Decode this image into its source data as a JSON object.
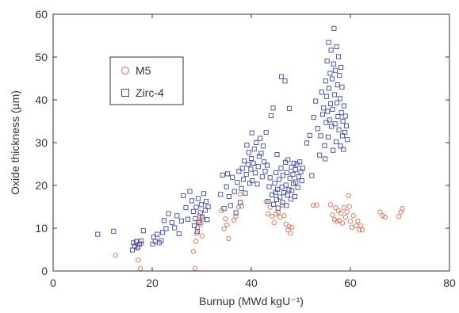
{
  "chart_data": {
    "type": "scatter",
    "title": "",
    "xlabel": "Burnup (MWd kgU⁻¹)",
    "ylabel": "Oxide thickness (µm)",
    "xlim": [
      0,
      80
    ],
    "ylim": [
      0,
      60
    ],
    "xticks": [
      0,
      20,
      40,
      60,
      80
    ],
    "yticks": [
      0,
      10,
      20,
      30,
      40,
      50,
      60
    ],
    "grid": false,
    "legend_position": "top-left",
    "series": [
      {
        "name": "M5",
        "marker": "circle",
        "color": "#e07050",
        "points": [
          [
            12.6,
            3.7
          ],
          [
            16.9,
            5.2
          ],
          [
            17.2,
            2.6
          ],
          [
            17.6,
            0.6
          ],
          [
            17.8,
            6.4
          ],
          [
            28.3,
            4.6
          ],
          [
            28.6,
            0.6
          ],
          [
            28.8,
            6.9
          ],
          [
            29.0,
            8.8
          ],
          [
            29.1,
            10.1
          ],
          [
            29.3,
            11.6
          ],
          [
            29.5,
            12.9
          ],
          [
            29.8,
            10.9
          ],
          [
            30.1,
            8.2
          ],
          [
            30.3,
            12.1
          ],
          [
            34.0,
            14.1
          ],
          [
            34.5,
            9.9
          ],
          [
            34.8,
            12.2
          ],
          [
            35.1,
            10.8
          ],
          [
            35.4,
            7.6
          ],
          [
            36.5,
            11.9
          ],
          [
            36.9,
            12.8
          ],
          [
            37.4,
            14.9
          ],
          [
            37.8,
            17.9
          ],
          [
            38.1,
            15.2
          ],
          [
            43.0,
            16.2
          ],
          [
            43.4,
            13.4
          ],
          [
            43.8,
            14.9
          ],
          [
            44.2,
            12.8
          ],
          [
            44.6,
            11.3
          ],
          [
            45.0,
            13.3
          ],
          [
            45.4,
            13.7
          ],
          [
            45.8,
            12.6
          ],
          [
            46.2,
            15.4
          ],
          [
            46.6,
            12.9
          ],
          [
            47.0,
            11.0
          ],
          [
            47.4,
            9.6
          ],
          [
            47.6,
            10.4
          ],
          [
            47.9,
            8.8
          ],
          [
            48.2,
            10.2
          ],
          [
            52.5,
            15.4
          ],
          [
            53.2,
            15.4
          ],
          [
            56.0,
            15.5
          ],
          [
            56.4,
            13.1
          ],
          [
            56.8,
            12.0
          ],
          [
            57.0,
            14.8
          ],
          [
            57.3,
            11.6
          ],
          [
            57.6,
            14.1
          ],
          [
            57.8,
            11.8
          ],
          [
            58.1,
            13.5
          ],
          [
            58.4,
            11.2
          ],
          [
            58.7,
            14.8
          ],
          [
            59.0,
            12.6
          ],
          [
            59.3,
            13.8
          ],
          [
            59.6,
            17.6
          ],
          [
            59.8,
            15.1
          ],
          [
            60.0,
            11.6
          ],
          [
            60.3,
            10.2
          ],
          [
            60.6,
            12.9
          ],
          [
            61.2,
            10.6
          ],
          [
            61.5,
            11.7
          ],
          [
            61.8,
            9.6
          ],
          [
            62.1,
            10.6
          ],
          [
            62.4,
            9.6
          ],
          [
            66.0,
            13.8
          ],
          [
            66.5,
            12.9
          ],
          [
            67.0,
            12.6
          ],
          [
            69.8,
            12.7
          ],
          [
            70.2,
            13.8
          ],
          [
            70.5,
            14.6
          ]
        ]
      },
      {
        "name": "Zirc-4",
        "marker": "square",
        "color": "#3c46a8",
        "points": [
          [
            9.0,
            8.6
          ],
          [
            12.2,
            9.3
          ],
          [
            16.0,
            4.9
          ],
          [
            16.2,
            6.6
          ],
          [
            16.5,
            5.8
          ],
          [
            16.8,
            6.9
          ],
          [
            17.1,
            5.6
          ],
          [
            17.4,
            6.3
          ],
          [
            17.8,
            7.0
          ],
          [
            18.2,
            9.4
          ],
          [
            20.1,
            6.3
          ],
          [
            20.3,
            7.9
          ],
          [
            20.6,
            6.9
          ],
          [
            21.0,
            8.6
          ],
          [
            21.4,
            6.6
          ],
          [
            21.8,
            7.1
          ],
          [
            22.1,
            9.0
          ],
          [
            22.4,
            11.8
          ],
          [
            22.8,
            9.9
          ],
          [
            23.3,
            13.4
          ],
          [
            24.0,
            11.3
          ],
          [
            24.5,
            10.1
          ],
          [
            25.0,
            12.9
          ],
          [
            25.4,
            8.7
          ],
          [
            25.9,
            11.7
          ],
          [
            26.3,
            17.6
          ],
          [
            26.8,
            14.8
          ],
          [
            27.2,
            12.1
          ],
          [
            27.6,
            18.6
          ],
          [
            28.0,
            16.4
          ],
          [
            28.3,
            13.9
          ],
          [
            28.5,
            10.6
          ],
          [
            28.7,
            12.2
          ],
          [
            28.9,
            14.9
          ],
          [
            29.1,
            9.3
          ],
          [
            29.3,
            16.9
          ],
          [
            29.5,
            11.3
          ],
          [
            29.7,
            13.6
          ],
          [
            29.9,
            15.5
          ],
          [
            30.1,
            12.6
          ],
          [
            30.4,
            18.1
          ],
          [
            30.7,
            14.2
          ],
          [
            30.9,
            16.3
          ],
          [
            31.1,
            12.0
          ],
          [
            31.3,
            15.0
          ],
          [
            33.8,
            17.9
          ],
          [
            34.2,
            22.4
          ],
          [
            34.5,
            14.6
          ],
          [
            35.0,
            19.7
          ],
          [
            35.2,
            22.7
          ],
          [
            35.5,
            17.4
          ],
          [
            35.8,
            15.3
          ],
          [
            36.2,
            21.9
          ],
          [
            36.6,
            18.6
          ],
          [
            36.9,
            13.6
          ],
          [
            37.2,
            20.7
          ],
          [
            37.5,
            23.3
          ],
          [
            37.8,
            16.0
          ],
          [
            38.0,
            19.3
          ],
          [
            38.2,
            24.0
          ],
          [
            38.4,
            21.4
          ],
          [
            38.6,
            25.7
          ],
          [
            38.8,
            18.2
          ],
          [
            39.0,
            22.6
          ],
          [
            39.1,
            29.4
          ],
          [
            39.3,
            24.9
          ],
          [
            39.5,
            27.7
          ],
          [
            39.7,
            20.5
          ],
          [
            39.9,
            23.8
          ],
          [
            40.0,
            26.3
          ],
          [
            40.1,
            32.3
          ],
          [
            40.2,
            21.1
          ],
          [
            40.4,
            25.2
          ],
          [
            40.6,
            28.5
          ],
          [
            40.8,
            22.9
          ],
          [
            41.0,
            30.0
          ],
          [
            41.2,
            20.3
          ],
          [
            41.4,
            24.4
          ],
          [
            41.6,
            26.8
          ],
          [
            41.8,
            31.0
          ],
          [
            42.0,
            27.5
          ],
          [
            42.2,
            22.0
          ],
          [
            42.4,
            29.2
          ],
          [
            42.6,
            25.5
          ],
          [
            42.8,
            23.3
          ],
          [
            43.0,
            32.4
          ],
          [
            43.2,
            24.7
          ],
          [
            43.4,
            16.3
          ],
          [
            43.6,
            19.7
          ],
          [
            43.8,
            21.8
          ],
          [
            44.0,
            36.3
          ],
          [
            44.2,
            17.8
          ],
          [
            44.4,
            38.1
          ],
          [
            44.5,
            15.6
          ],
          [
            44.7,
            20.5
          ],
          [
            44.9,
            18.4
          ],
          [
            45.0,
            23.0
          ],
          [
            45.1,
            16.7
          ],
          [
            45.2,
            27.2
          ],
          [
            45.3,
            19.1
          ],
          [
            45.4,
            14.7
          ],
          [
            45.6,
            21.4
          ],
          [
            45.8,
            17.3
          ],
          [
            46.0,
            24.0
          ],
          [
            46.1,
            45.4
          ],
          [
            46.2,
            19.6
          ],
          [
            46.3,
            16.0
          ],
          [
            46.4,
            22.3
          ],
          [
            46.6,
            18.3
          ],
          [
            46.8,
            44.4
          ],
          [
            46.9,
            25.4
          ],
          [
            47.0,
            20.1
          ],
          [
            47.1,
            15.3
          ],
          [
            47.2,
            23.0
          ],
          [
            47.3,
            17.7
          ],
          [
            47.4,
            26.0
          ],
          [
            47.6,
            19.0
          ],
          [
            47.7,
            38.0
          ],
          [
            47.8,
            21.7
          ],
          [
            48.0,
            16.8
          ],
          [
            48.1,
            24.3
          ],
          [
            48.2,
            18.8
          ],
          [
            48.4,
            22.6
          ],
          [
            48.5,
            20.4
          ],
          [
            48.6,
            25.2
          ],
          [
            48.8,
            17.4
          ],
          [
            48.9,
            23.7
          ],
          [
            49.0,
            20.8
          ],
          [
            49.2,
            24.9
          ],
          [
            49.4,
            19.5
          ],
          [
            49.6,
            22.0
          ],
          [
            49.8,
            25.5
          ],
          [
            50.0,
            23.2
          ],
          [
            50.2,
            21.1
          ],
          [
            50.4,
            24.0
          ],
          [
            51.2,
            29.9
          ],
          [
            51.8,
            31.7
          ],
          [
            52.2,
            22.3
          ],
          [
            52.6,
            35.9
          ],
          [
            53.0,
            39.7
          ],
          [
            53.4,
            33.3
          ],
          [
            53.8,
            27.1
          ],
          [
            54.0,
            31.6
          ],
          [
            54.2,
            41.8
          ],
          [
            54.4,
            36.6
          ],
          [
            54.6,
            38.1
          ],
          [
            54.8,
            29.3
          ],
          [
            54.9,
            26.2
          ],
          [
            55.0,
            44.4
          ],
          [
            55.1,
            34.7
          ],
          [
            55.2,
            40.8
          ],
          [
            55.3,
            49.1
          ],
          [
            55.4,
            37.3
          ],
          [
            55.5,
            31.3
          ],
          [
            55.6,
            53.4
          ],
          [
            55.7,
            42.7
          ],
          [
            55.8,
            35.3
          ],
          [
            55.9,
            46.2
          ],
          [
            56.0,
            39.1
          ],
          [
            56.1,
            51.6
          ],
          [
            56.2,
            33.8
          ],
          [
            56.3,
            44.9
          ],
          [
            56.4,
            37.8
          ],
          [
            56.5,
            28.2
          ],
          [
            56.6,
            48.4
          ],
          [
            56.7,
            56.7
          ],
          [
            56.8,
            41.2
          ],
          [
            56.9,
            34.4
          ],
          [
            57.0,
            46.9
          ],
          [
            57.1,
            30.2
          ],
          [
            57.2,
            52.4
          ],
          [
            57.3,
            39.3
          ],
          [
            57.4,
            43.5
          ],
          [
            57.5,
            36.1
          ],
          [
            57.6,
            50.1
          ],
          [
            57.7,
            33.0
          ],
          [
            57.8,
            45.7
          ],
          [
            57.9,
            40.3
          ],
          [
            58.0,
            29.2
          ],
          [
            58.1,
            47.6
          ],
          [
            58.2,
            37.0
          ],
          [
            58.3,
            43.0
          ],
          [
            58.4,
            31.6
          ],
          [
            58.5,
            35.0
          ],
          [
            58.6,
            28.4
          ],
          [
            58.7,
            38.6
          ],
          [
            58.9,
            32.4
          ],
          [
            59.0,
            36.2
          ],
          [
            59.2,
            33.9
          ],
          [
            59.4,
            30.7
          ]
        ]
      }
    ]
  }
}
